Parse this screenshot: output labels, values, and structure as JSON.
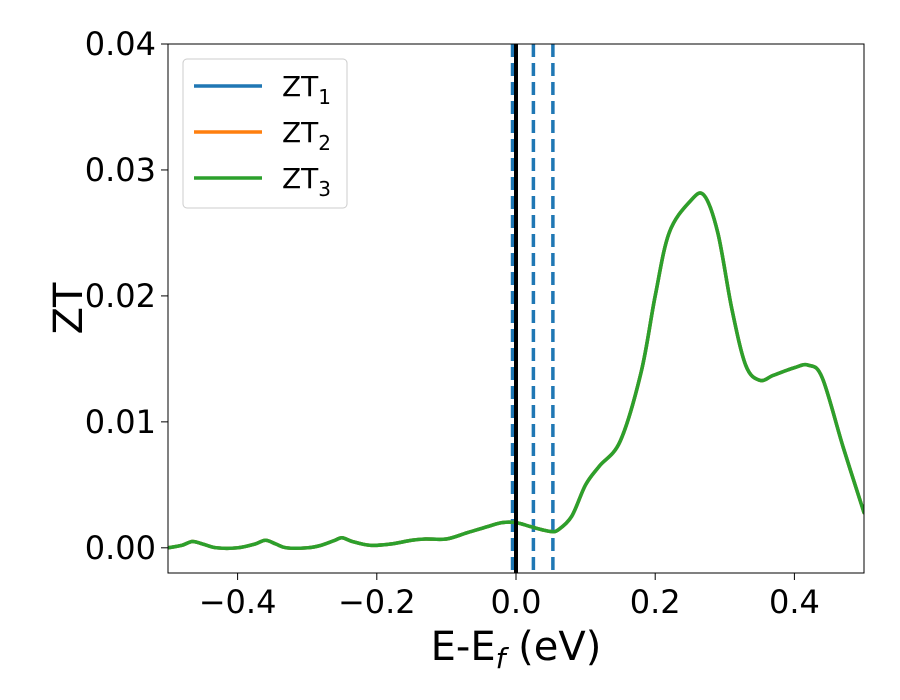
{
  "chart_data": {
    "type": "line",
    "title": "",
    "xlabel": "E-E",
    "xlabel_sub": "f",
    "xlabel_unit": " (eV)",
    "ylabel": "ZT",
    "xlim": [
      -0.5,
      0.5
    ],
    "ylim": [
      -0.002,
      0.04
    ],
    "xticks": [
      -0.4,
      -0.2,
      0.0,
      0.2,
      0.4
    ],
    "xtick_labels": [
      "−0.4",
      "−0.2",
      "0.0",
      "0.2",
      "0.4"
    ],
    "yticks": [
      0.0,
      0.01,
      0.02,
      0.03,
      0.04
    ],
    "ytick_labels": [
      "0.00",
      "0.01",
      "0.02",
      "0.03",
      "0.04"
    ],
    "grid": false,
    "legend_placement": "top-left",
    "x": [
      -0.5,
      -0.48,
      -0.465,
      -0.45,
      -0.43,
      -0.4,
      -0.375,
      -0.36,
      -0.345,
      -0.33,
      -0.3,
      -0.28,
      -0.26,
      -0.25,
      -0.235,
      -0.21,
      -0.18,
      -0.15,
      -0.13,
      -0.1,
      -0.07,
      -0.04,
      -0.02,
      0.0,
      0.02,
      0.04,
      0.05,
      0.06,
      0.08,
      0.1,
      0.12,
      0.15,
      0.18,
      0.2,
      0.22,
      0.25,
      0.27,
      0.29,
      0.31,
      0.33,
      0.35,
      0.37,
      0.4,
      0.42,
      0.44,
      0.47,
      0.5
    ],
    "series": [
      {
        "name": "ZT",
        "sub": "1",
        "color": "#1f77b4",
        "values": [
          0.0,
          0.0002,
          0.0005,
          0.0003,
          0.0,
          0.0,
          0.0003,
          0.0006,
          0.0003,
          0.0,
          0.0,
          0.0002,
          0.0006,
          0.0008,
          0.0005,
          0.0002,
          0.0003,
          0.0006,
          0.0007,
          0.0007,
          0.0012,
          0.0017,
          0.002,
          0.002,
          0.0017,
          0.0014,
          0.0013,
          0.0014,
          0.0025,
          0.005,
          0.0065,
          0.0085,
          0.014,
          0.02,
          0.025,
          0.0275,
          0.028,
          0.025,
          0.019,
          0.0145,
          0.0133,
          0.0137,
          0.0143,
          0.0145,
          0.0135,
          0.008,
          0.0028
        ]
      },
      {
        "name": "ZT",
        "sub": "2",
        "color": "#ff7f0e",
        "values": [
          0.0,
          0.0002,
          0.0005,
          0.0003,
          0.0,
          0.0,
          0.0003,
          0.0006,
          0.0003,
          0.0,
          0.0,
          0.0002,
          0.0006,
          0.0008,
          0.0005,
          0.0002,
          0.0003,
          0.0006,
          0.0007,
          0.0007,
          0.0012,
          0.0017,
          0.002,
          0.002,
          0.0017,
          0.0014,
          0.0013,
          0.0014,
          0.0025,
          0.005,
          0.0065,
          0.0085,
          0.014,
          0.02,
          0.025,
          0.0275,
          0.028,
          0.025,
          0.019,
          0.0145,
          0.0133,
          0.0137,
          0.0143,
          0.0145,
          0.0135,
          0.008,
          0.0028
        ]
      },
      {
        "name": "ZT",
        "sub": "3",
        "color": "#2ca02c",
        "values": [
          0.0,
          0.0002,
          0.0005,
          0.0003,
          0.0,
          0.0,
          0.0003,
          0.0006,
          0.0003,
          0.0,
          0.0,
          0.0002,
          0.0006,
          0.0008,
          0.0005,
          0.0002,
          0.0003,
          0.0006,
          0.0007,
          0.0007,
          0.0012,
          0.0017,
          0.002,
          0.002,
          0.0017,
          0.0014,
          0.0013,
          0.0014,
          0.0025,
          0.005,
          0.0065,
          0.0085,
          0.014,
          0.02,
          0.025,
          0.0275,
          0.028,
          0.025,
          0.019,
          0.0145,
          0.0133,
          0.0137,
          0.0143,
          0.0145,
          0.0135,
          0.008,
          0.0028
        ]
      }
    ],
    "vlines": [
      {
        "x": -0.005,
        "color": "#1f77b4",
        "style": "dashed"
      },
      {
        "x": 0.025,
        "color": "#1f77b4",
        "style": "dashed"
      },
      {
        "x": 0.053,
        "color": "#1f77b4",
        "style": "dashed"
      },
      {
        "x": 0.0,
        "color": "#000000",
        "style": "solid"
      }
    ]
  }
}
